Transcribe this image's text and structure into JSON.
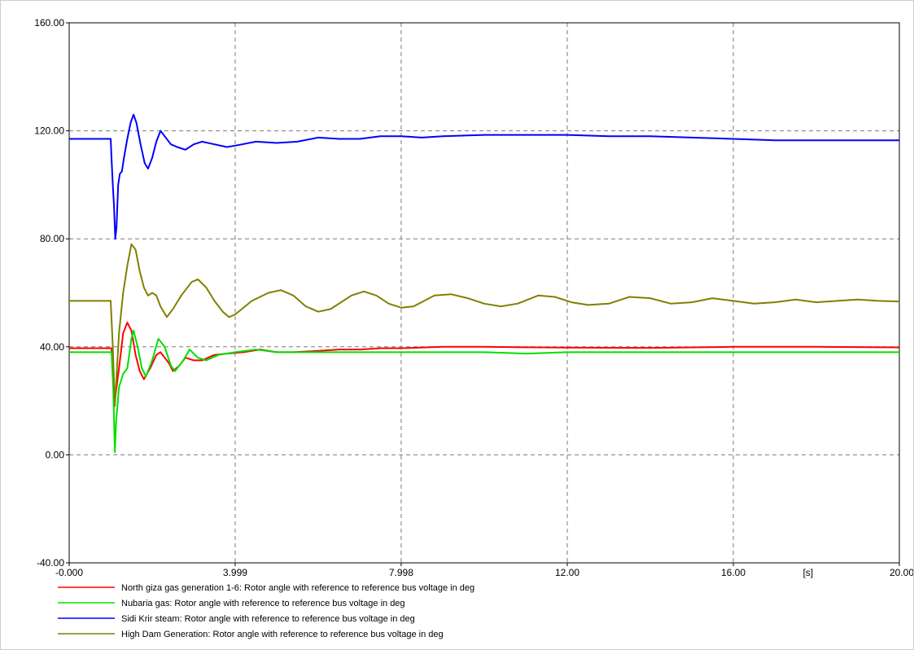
{
  "chart_data": {
    "type": "line",
    "x_unit_label": "[s]",
    "xlim": [
      0,
      20
    ],
    "ylim": [
      -40,
      160
    ],
    "grid": true,
    "x_ticks": [
      {
        "value": 0,
        "label": "-0.000"
      },
      {
        "value": 3.999,
        "label": "3.999"
      },
      {
        "value": 7.998,
        "label": "7.998"
      },
      {
        "value": 12,
        "label": "12.00"
      },
      {
        "value": 16,
        "label": "16.00"
      },
      {
        "value": 20,
        "label": "20.00"
      }
    ],
    "y_ticks": [
      {
        "value": -40,
        "label": "-40.00"
      },
      {
        "value": 0,
        "label": "0.00"
      },
      {
        "value": 40,
        "label": "40.00"
      },
      {
        "value": 80,
        "label": "80.00"
      },
      {
        "value": 120,
        "label": "120.00"
      },
      {
        "value": 160,
        "label": "160.00"
      }
    ],
    "legend_position": "bottom",
    "series": [
      {
        "name": "North giza gas generation 1-6: Rotor angle with reference to reference bus voltage in deg",
        "color": "#ff0000",
        "points": [
          [
            0,
            39.5
          ],
          [
            1.0,
            39.5
          ],
          [
            1.02,
            39.5
          ],
          [
            1.06,
            30
          ],
          [
            1.1,
            20
          ],
          [
            1.2,
            32
          ],
          [
            1.3,
            45
          ],
          [
            1.4,
            49
          ],
          [
            1.5,
            46
          ],
          [
            1.6,
            37
          ],
          [
            1.7,
            31
          ],
          [
            1.8,
            28
          ],
          [
            1.95,
            32
          ],
          [
            2.1,
            37
          ],
          [
            2.2,
            38
          ],
          [
            2.4,
            34
          ],
          [
            2.5,
            31
          ],
          [
            2.65,
            33
          ],
          [
            2.8,
            36
          ],
          [
            3.0,
            35
          ],
          [
            3.2,
            35
          ],
          [
            3.5,
            37
          ],
          [
            3.8,
            37.5
          ],
          [
            4.2,
            38
          ],
          [
            4.6,
            39
          ],
          [
            5.0,
            38
          ],
          [
            5.4,
            38
          ],
          [
            6.0,
            38.5
          ],
          [
            6.5,
            39
          ],
          [
            7.0,
            39
          ],
          [
            7.5,
            39.5
          ],
          [
            8.0,
            39.5
          ],
          [
            9.0,
            40
          ],
          [
            10.0,
            40
          ],
          [
            12.0,
            39.7
          ],
          [
            14.0,
            39.6
          ],
          [
            16.0,
            40
          ],
          [
            18.0,
            40
          ],
          [
            20.0,
            39.8
          ]
        ]
      },
      {
        "name": "Nubaria gas: Rotor angle with reference to reference bus voltage in deg",
        "color": "#00e000",
        "points": [
          [
            0,
            38
          ],
          [
            1.0,
            38
          ],
          [
            1.02,
            38
          ],
          [
            1.06,
            25
          ],
          [
            1.1,
            1
          ],
          [
            1.13,
            12
          ],
          [
            1.2,
            25
          ],
          [
            1.3,
            30
          ],
          [
            1.4,
            32
          ],
          [
            1.5,
            43
          ],
          [
            1.55,
            46
          ],
          [
            1.65,
            40
          ],
          [
            1.75,
            32
          ],
          [
            1.85,
            29
          ],
          [
            2.0,
            35
          ],
          [
            2.15,
            43
          ],
          [
            2.3,
            40
          ],
          [
            2.45,
            33
          ],
          [
            2.55,
            31
          ],
          [
            2.75,
            35
          ],
          [
            2.9,
            39
          ],
          [
            3.1,
            36
          ],
          [
            3.3,
            35
          ],
          [
            3.6,
            37
          ],
          [
            4.0,
            38
          ],
          [
            4.5,
            39
          ],
          [
            5.0,
            38
          ],
          [
            5.5,
            38
          ],
          [
            6.0,
            38
          ],
          [
            7.0,
            38
          ],
          [
            8.0,
            38
          ],
          [
            10.0,
            38
          ],
          [
            11.0,
            37.5
          ],
          [
            12.0,
            38
          ],
          [
            14.0,
            38
          ],
          [
            16.0,
            38
          ],
          [
            18.0,
            38
          ],
          [
            20.0,
            38
          ]
        ]
      },
      {
        "name": "Sidi Krir steam: Rotor angle with reference to reference bus voltage in deg",
        "color": "#0000ff",
        "points": [
          [
            0,
            117
          ],
          [
            0.98,
            117
          ],
          [
            1.0,
            117
          ],
          [
            1.02,
            110
          ],
          [
            1.05,
            100
          ],
          [
            1.08,
            92
          ],
          [
            1.11,
            80
          ],
          [
            1.14,
            84
          ],
          [
            1.18,
            100
          ],
          [
            1.22,
            104
          ],
          [
            1.27,
            105
          ],
          [
            1.32,
            110
          ],
          [
            1.4,
            117
          ],
          [
            1.48,
            123
          ],
          [
            1.55,
            126
          ],
          [
            1.62,
            123
          ],
          [
            1.72,
            115
          ],
          [
            1.82,
            108
          ],
          [
            1.9,
            106
          ],
          [
            2.0,
            110
          ],
          [
            2.1,
            116
          ],
          [
            2.2,
            120
          ],
          [
            2.3,
            118
          ],
          [
            2.45,
            115
          ],
          [
            2.6,
            114
          ],
          [
            2.8,
            113
          ],
          [
            3.0,
            115
          ],
          [
            3.2,
            116
          ],
          [
            3.5,
            115
          ],
          [
            3.8,
            114
          ],
          [
            4.0,
            114.5
          ],
          [
            4.5,
            116
          ],
          [
            5.0,
            115.5
          ],
          [
            5.5,
            116
          ],
          [
            6.0,
            117.5
          ],
          [
            6.5,
            117
          ],
          [
            7.0,
            117
          ],
          [
            7.5,
            118
          ],
          [
            8.0,
            118
          ],
          [
            8.5,
            117.5
          ],
          [
            9.0,
            118
          ],
          [
            10.0,
            118.5
          ],
          [
            11.0,
            118.5
          ],
          [
            12.0,
            118.5
          ],
          [
            13.0,
            118
          ],
          [
            14.0,
            118
          ],
          [
            15.0,
            117.5
          ],
          [
            16.0,
            117
          ],
          [
            17.0,
            116.5
          ],
          [
            18.0,
            116.5
          ],
          [
            19.0,
            116.5
          ],
          [
            20.0,
            116.5
          ]
        ]
      },
      {
        "name": "High Dam Generation: Rotor angle with reference to reference bus voltage in deg",
        "color": "#808000",
        "points": [
          [
            0,
            57
          ],
          [
            0.98,
            57
          ],
          [
            1.0,
            57
          ],
          [
            1.05,
            40
          ],
          [
            1.1,
            18
          ],
          [
            1.2,
            45
          ],
          [
            1.3,
            60
          ],
          [
            1.4,
            70
          ],
          [
            1.5,
            78
          ],
          [
            1.6,
            76
          ],
          [
            1.7,
            68
          ],
          [
            1.8,
            62
          ],
          [
            1.9,
            59
          ],
          [
            2.0,
            60
          ],
          [
            2.1,
            59
          ],
          [
            2.2,
            55
          ],
          [
            2.35,
            51
          ],
          [
            2.5,
            54
          ],
          [
            2.7,
            59
          ],
          [
            2.95,
            64
          ],
          [
            3.1,
            65
          ],
          [
            3.3,
            62
          ],
          [
            3.5,
            57
          ],
          [
            3.7,
            53
          ],
          [
            3.85,
            51
          ],
          [
            4.0,
            52
          ],
          [
            4.4,
            57
          ],
          [
            4.8,
            60
          ],
          [
            5.1,
            61
          ],
          [
            5.4,
            59
          ],
          [
            5.7,
            55
          ],
          [
            6.0,
            53
          ],
          [
            6.3,
            54
          ],
          [
            6.8,
            59
          ],
          [
            7.1,
            60.5
          ],
          [
            7.4,
            59
          ],
          [
            7.7,
            56
          ],
          [
            8.0,
            54.5
          ],
          [
            8.3,
            55
          ],
          [
            8.8,
            59
          ],
          [
            9.2,
            59.5
          ],
          [
            9.6,
            58
          ],
          [
            10.0,
            56
          ],
          [
            10.4,
            55
          ],
          [
            10.8,
            56
          ],
          [
            11.3,
            59
          ],
          [
            11.7,
            58.5
          ],
          [
            12.1,
            56.5
          ],
          [
            12.5,
            55.5
          ],
          [
            13.0,
            56
          ],
          [
            13.5,
            58.5
          ],
          [
            14.0,
            58
          ],
          [
            14.5,
            56
          ],
          [
            15.0,
            56.5
          ],
          [
            15.5,
            58
          ],
          [
            16.0,
            57
          ],
          [
            16.5,
            56
          ],
          [
            17.0,
            56.5
          ],
          [
            17.5,
            57.5
          ],
          [
            18.0,
            56.5
          ],
          [
            18.5,
            57
          ],
          [
            19.0,
            57.5
          ],
          [
            19.5,
            57
          ],
          [
            20.0,
            56.8
          ]
        ]
      }
    ]
  }
}
